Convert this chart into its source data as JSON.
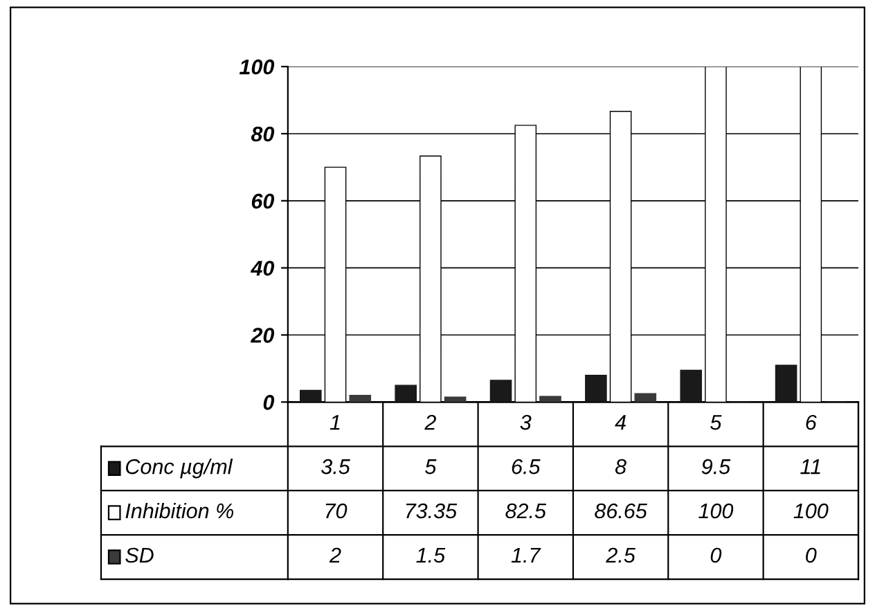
{
  "chart_data": {
    "type": "bar",
    "categories": [
      "1",
      "2",
      "3",
      "4",
      "5",
      "6"
    ],
    "series": [
      {
        "name": "Conc µg/ml",
        "color": "#1a1a1a",
        "values": [
          3.5,
          5,
          6.5,
          8,
          9.5,
          11
        ]
      },
      {
        "name": "Inhibition %",
        "color": "#ffffff",
        "values": [
          70,
          73.35,
          82.5,
          86.65,
          100,
          100
        ]
      },
      {
        "name": "SD",
        "color": "#3a3a3a",
        "values": [
          2,
          1.5,
          1.7,
          2.5,
          0,
          0
        ]
      }
    ],
    "ylim": [
      0,
      100
    ],
    "yticks": [
      0,
      20,
      40,
      60,
      80,
      100
    ],
    "grid": "y",
    "data_labels": true,
    "legend": "bottom left"
  }
}
